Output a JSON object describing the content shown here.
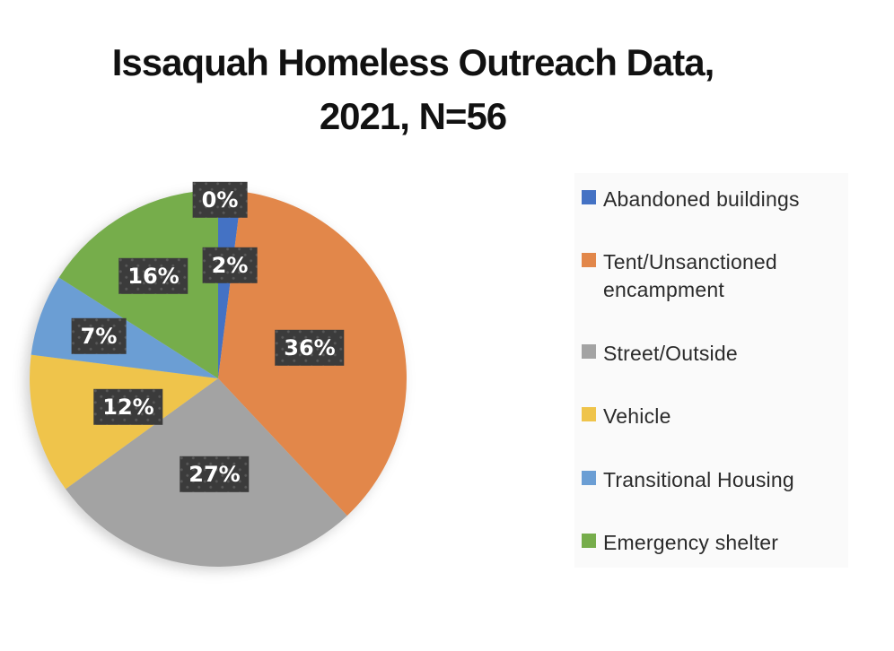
{
  "title": {
    "line1": "Issaquah Homeless Outreach Data,",
    "line2": "2021, N=56"
  },
  "chart_data": {
    "type": "pie",
    "title": "Issaquah Homeless Outreach Data, 2021, N=56",
    "year": "2021",
    "sample_size_label": "N=56",
    "start_angle_deg": 0,
    "direction": "clockwise",
    "legend_position": "right",
    "slices": [
      {
        "name": "",
        "pct_label": "0%",
        "value": 0,
        "color": null
      },
      {
        "name": "Abandoned buildings",
        "pct_label": "2%",
        "value": 2,
        "color": "#4472c4"
      },
      {
        "name": "Tent/Unsanctioned encampment",
        "pct_label": "36%",
        "value": 36,
        "color": "#e2874a"
      },
      {
        "name": "Street/Outside",
        "pct_label": "27%",
        "value": 27,
        "color": "#a3a3a3"
      },
      {
        "name": "Vehicle",
        "pct_label": "12%",
        "value": 12,
        "color": "#efc44b"
      },
      {
        "name": "Transitional Housing",
        "pct_label": "7%",
        "value": 7,
        "color": "#6b9ed4"
      },
      {
        "name": "Emergency shelter",
        "pct_label": "16%",
        "value": 16,
        "color": "#76ad4b"
      }
    ],
    "legend": [
      {
        "label": "Abandoned buildings",
        "color": "#4472c4"
      },
      {
        "label": "Tent/Unsanctioned encampment",
        "color": "#e2874a"
      },
      {
        "label": "Street/Outside",
        "color": "#a3a3a3"
      },
      {
        "label": "Vehicle",
        "color": "#efc44b"
      },
      {
        "label": "Transitional Housing",
        "color": "#6b9ed4"
      },
      {
        "label": "Emergency shelter",
        "color": "#76ad4b"
      }
    ],
    "label_style": {
      "box_color": "#3b3b3b",
      "text_color": "#ffffff"
    }
  }
}
